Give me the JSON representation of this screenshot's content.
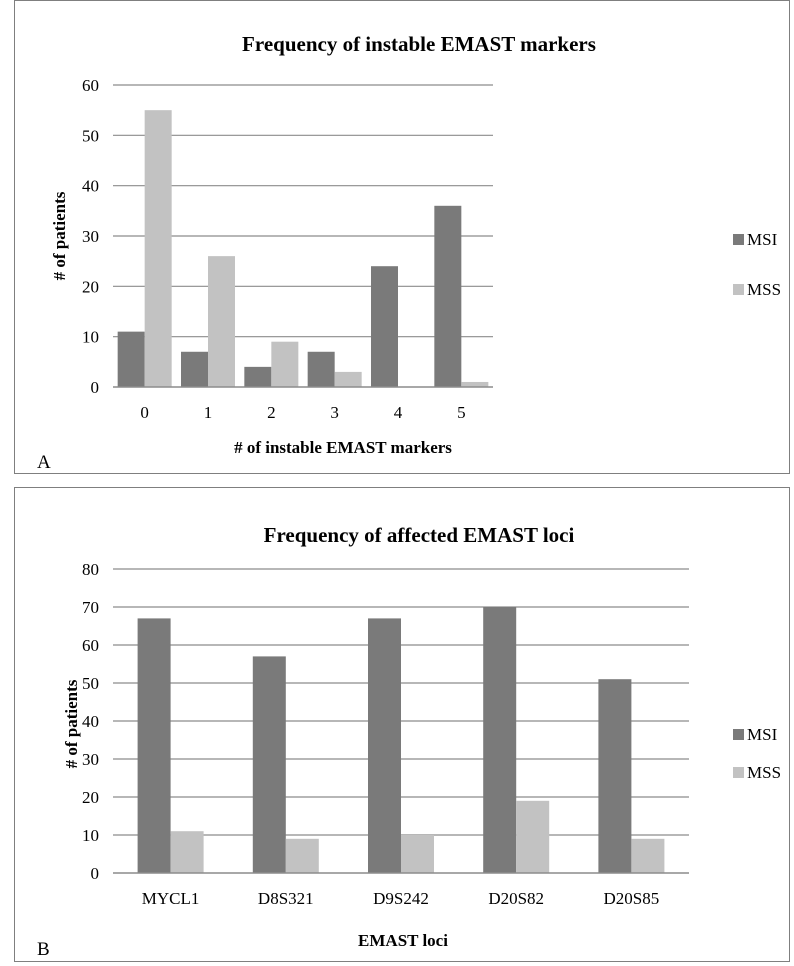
{
  "colors": {
    "msi": "#7a7a7a",
    "mss": "#c2c2c2",
    "grid": "#8c8c8c",
    "axis": "#8c8c8c"
  },
  "chart_data": [
    {
      "panel_label": "A",
      "type": "bar",
      "title": "Frequency of instable EMAST markers",
      "xlabel": "# of instable EMAST markers",
      "ylabel": "# of patients",
      "ylim": [
        0,
        60
      ],
      "yticks": [
        0,
        10,
        20,
        30,
        40,
        50,
        60
      ],
      "categories": [
        "0",
        "1",
        "2",
        "3",
        "4",
        "5"
      ],
      "series": [
        {
          "name": "MSI",
          "values": [
            11,
            7,
            4,
            7,
            24,
            36
          ]
        },
        {
          "name": "MSS",
          "values": [
            55,
            26,
            9,
            3,
            0,
            1
          ]
        }
      ],
      "grid": true,
      "legend": "right"
    },
    {
      "panel_label": "B",
      "type": "bar",
      "title": "Frequency of affected EMAST loci",
      "xlabel": "EMAST loci",
      "ylabel": "# of patients",
      "ylim": [
        0,
        80
      ],
      "yticks": [
        0,
        10,
        20,
        30,
        40,
        50,
        60,
        70,
        80
      ],
      "categories": [
        "MYCL1",
        "D8S321",
        "D9S242",
        "D20S82",
        "D20S85"
      ],
      "series": [
        {
          "name": "MSI",
          "values": [
            67,
            57,
            67,
            70,
            51
          ]
        },
        {
          "name": "MSS",
          "values": [
            11,
            9,
            10,
            19,
            9
          ]
        }
      ],
      "grid": true,
      "legend": "right"
    }
  ]
}
